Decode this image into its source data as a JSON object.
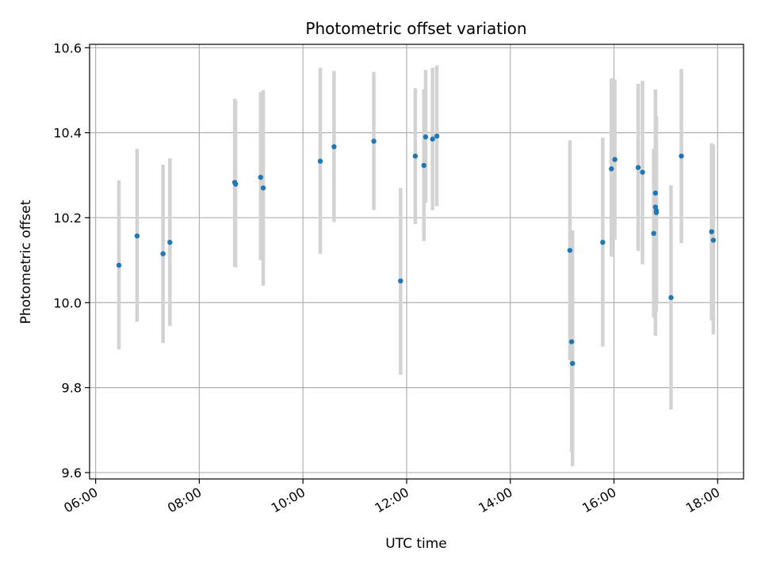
{
  "chart_data": {
    "type": "scatter",
    "title": "Photometric offset variation",
    "xlabel": "UTC time",
    "ylabel": "Photometric offset",
    "xlim": [
      "05:53",
      "18:30"
    ],
    "ylim": [
      9.585,
      10.608
    ],
    "x_ticks": [
      "06:00",
      "08:00",
      "10:00",
      "12:00",
      "14:00",
      "16:00",
      "18:00"
    ],
    "y_ticks": [
      "9.6",
      "9.8",
      "10.0",
      "10.2",
      "10.4",
      "10.6"
    ],
    "grid": true,
    "marker_color": "#1f77b4",
    "errorbar_color": "#d3d3d3",
    "points": [
      {
        "time": "06:27",
        "value": 10.088,
        "low": 9.89,
        "high": 10.288
      },
      {
        "time": "06:48",
        "value": 10.157,
        "low": 9.955,
        "high": 10.362
      },
      {
        "time": "07:18",
        "value": 10.115,
        "low": 9.905,
        "high": 10.325
      },
      {
        "time": "07:26",
        "value": 10.142,
        "low": 9.945,
        "high": 10.34
      },
      {
        "time": "08:41",
        "value": 10.283,
        "low": 10.085,
        "high": 10.48
      },
      {
        "time": "08:42",
        "value": 10.279,
        "low": 10.083,
        "high": 10.475
      },
      {
        "time": "09:11",
        "value": 10.295,
        "low": 10.1,
        "high": 10.495
      },
      {
        "time": "09:14",
        "value": 10.27,
        "low": 10.04,
        "high": 10.5
      },
      {
        "time": "10:20",
        "value": 10.333,
        "low": 10.115,
        "high": 10.553
      },
      {
        "time": "10:36",
        "value": 10.367,
        "low": 10.19,
        "high": 10.545
      },
      {
        "time": "11:22",
        "value": 10.38,
        "low": 10.218,
        "high": 10.543
      },
      {
        "time": "11:53",
        "value": 10.051,
        "low": 9.83,
        "high": 10.27
      },
      {
        "time": "12:10",
        "value": 10.345,
        "low": 10.185,
        "high": 10.505
      },
      {
        "time": "12:20",
        "value": 10.323,
        "low": 10.145,
        "high": 10.502
      },
      {
        "time": "12:22",
        "value": 10.39,
        "low": 10.235,
        "high": 10.548
      },
      {
        "time": "12:30",
        "value": 10.385,
        "low": 10.218,
        "high": 10.553
      },
      {
        "time": "12:35",
        "value": 10.392,
        "low": 10.227,
        "high": 10.558
      },
      {
        "time": "15:09",
        "value": 10.123,
        "low": 9.865,
        "high": 10.382
      },
      {
        "time": "15:11",
        "value": 9.908,
        "low": 9.648,
        "high": 10.168
      },
      {
        "time": "15:12",
        "value": 9.857,
        "low": 9.615,
        "high": 10.17
      },
      {
        "time": "15:47",
        "value": 10.142,
        "low": 9.897,
        "high": 10.388
      },
      {
        "time": "15:57",
        "value": 10.315,
        "low": 10.108,
        "high": 10.528
      },
      {
        "time": "16:01",
        "value": 10.337,
        "low": 10.148,
        "high": 10.525
      },
      {
        "time": "16:28",
        "value": 10.318,
        "low": 10.122,
        "high": 10.515
      },
      {
        "time": "16:33",
        "value": 10.307,
        "low": 10.09,
        "high": 10.522
      },
      {
        "time": "16:46",
        "value": 10.163,
        "low": 9.965,
        "high": 10.362
      },
      {
        "time": "16:48",
        "value": 10.258,
        "low": 10.055,
        "high": 10.502
      },
      {
        "time": "16:48",
        "value": 10.225,
        "low": 9.922,
        "high": 10.455
      },
      {
        "time": "16:49",
        "value": 10.217,
        "low": 10.0,
        "high": 10.435
      },
      {
        "time": "16:49",
        "value": 10.212,
        "low": 9.98,
        "high": 10.44
      },
      {
        "time": "17:06",
        "value": 10.012,
        "low": 9.748,
        "high": 10.276
      },
      {
        "time": "17:18",
        "value": 10.345,
        "low": 10.14,
        "high": 10.55
      },
      {
        "time": "17:53",
        "value": 10.167,
        "low": 9.958,
        "high": 10.375
      },
      {
        "time": "17:55",
        "value": 10.147,
        "low": 9.925,
        "high": 10.372
      }
    ]
  }
}
